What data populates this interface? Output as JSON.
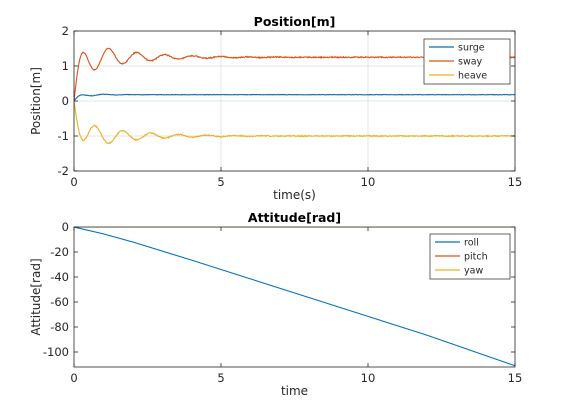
{
  "chart_data": [
    {
      "type": "line",
      "title": "Position[m]",
      "xlabel": "time(s)",
      "ylabel": "Position[m]",
      "xlim": [
        0,
        15
      ],
      "ylim": [
        -2,
        2
      ],
      "xticks": [
        0,
        5,
        10,
        15
      ],
      "yticks": [
        2,
        1,
        0,
        -1,
        -2
      ],
      "grid": true,
      "legend_position": "top-right",
      "series": [
        {
          "name": "surge",
          "color": "#0072BD",
          "settle": 0.18,
          "amp": 0.07,
          "decay": 1.6,
          "freq": 1.2,
          "noise": 0.012
        },
        {
          "name": "sway",
          "color": "#D95319",
          "settle": 1.25,
          "amp": 0.55,
          "decay": 0.65,
          "freq": 1.05,
          "noise": 0.03
        },
        {
          "name": "heave",
          "color": "#EDB120",
          "settle": -1.0,
          "amp": -0.45,
          "decay": 0.65,
          "freq": 1.05,
          "noise": 0.03
        }
      ]
    },
    {
      "type": "line",
      "title": "Attitude[rad]",
      "xlabel": "time",
      "ylabel": "Attitude[rad]",
      "xlim": [
        0,
        15
      ],
      "ylim": [
        -112,
        0
      ],
      "xticks": [
        0,
        5,
        10,
        15
      ],
      "yticks": [
        0,
        -20,
        -40,
        -60,
        -80,
        -100
      ],
      "grid": false,
      "legend_position": "top-right",
      "series": [
        {
          "name": "roll",
          "color": "#0072BD",
          "x": [
            0,
            1,
            2,
            4,
            6,
            8,
            10,
            12,
            15
          ],
          "y": [
            0,
            -5.5,
            -12,
            -26.5,
            -41.5,
            -56.5,
            -71.5,
            -86.5,
            -111
          ]
        },
        {
          "name": "pitch",
          "color": "#D95319",
          "x": [
            0,
            15
          ],
          "y": [
            0,
            0
          ]
        },
        {
          "name": "yaw",
          "color": "#EDB120",
          "x": [
            0,
            15
          ],
          "y": [
            0,
            0
          ]
        }
      ]
    }
  ]
}
